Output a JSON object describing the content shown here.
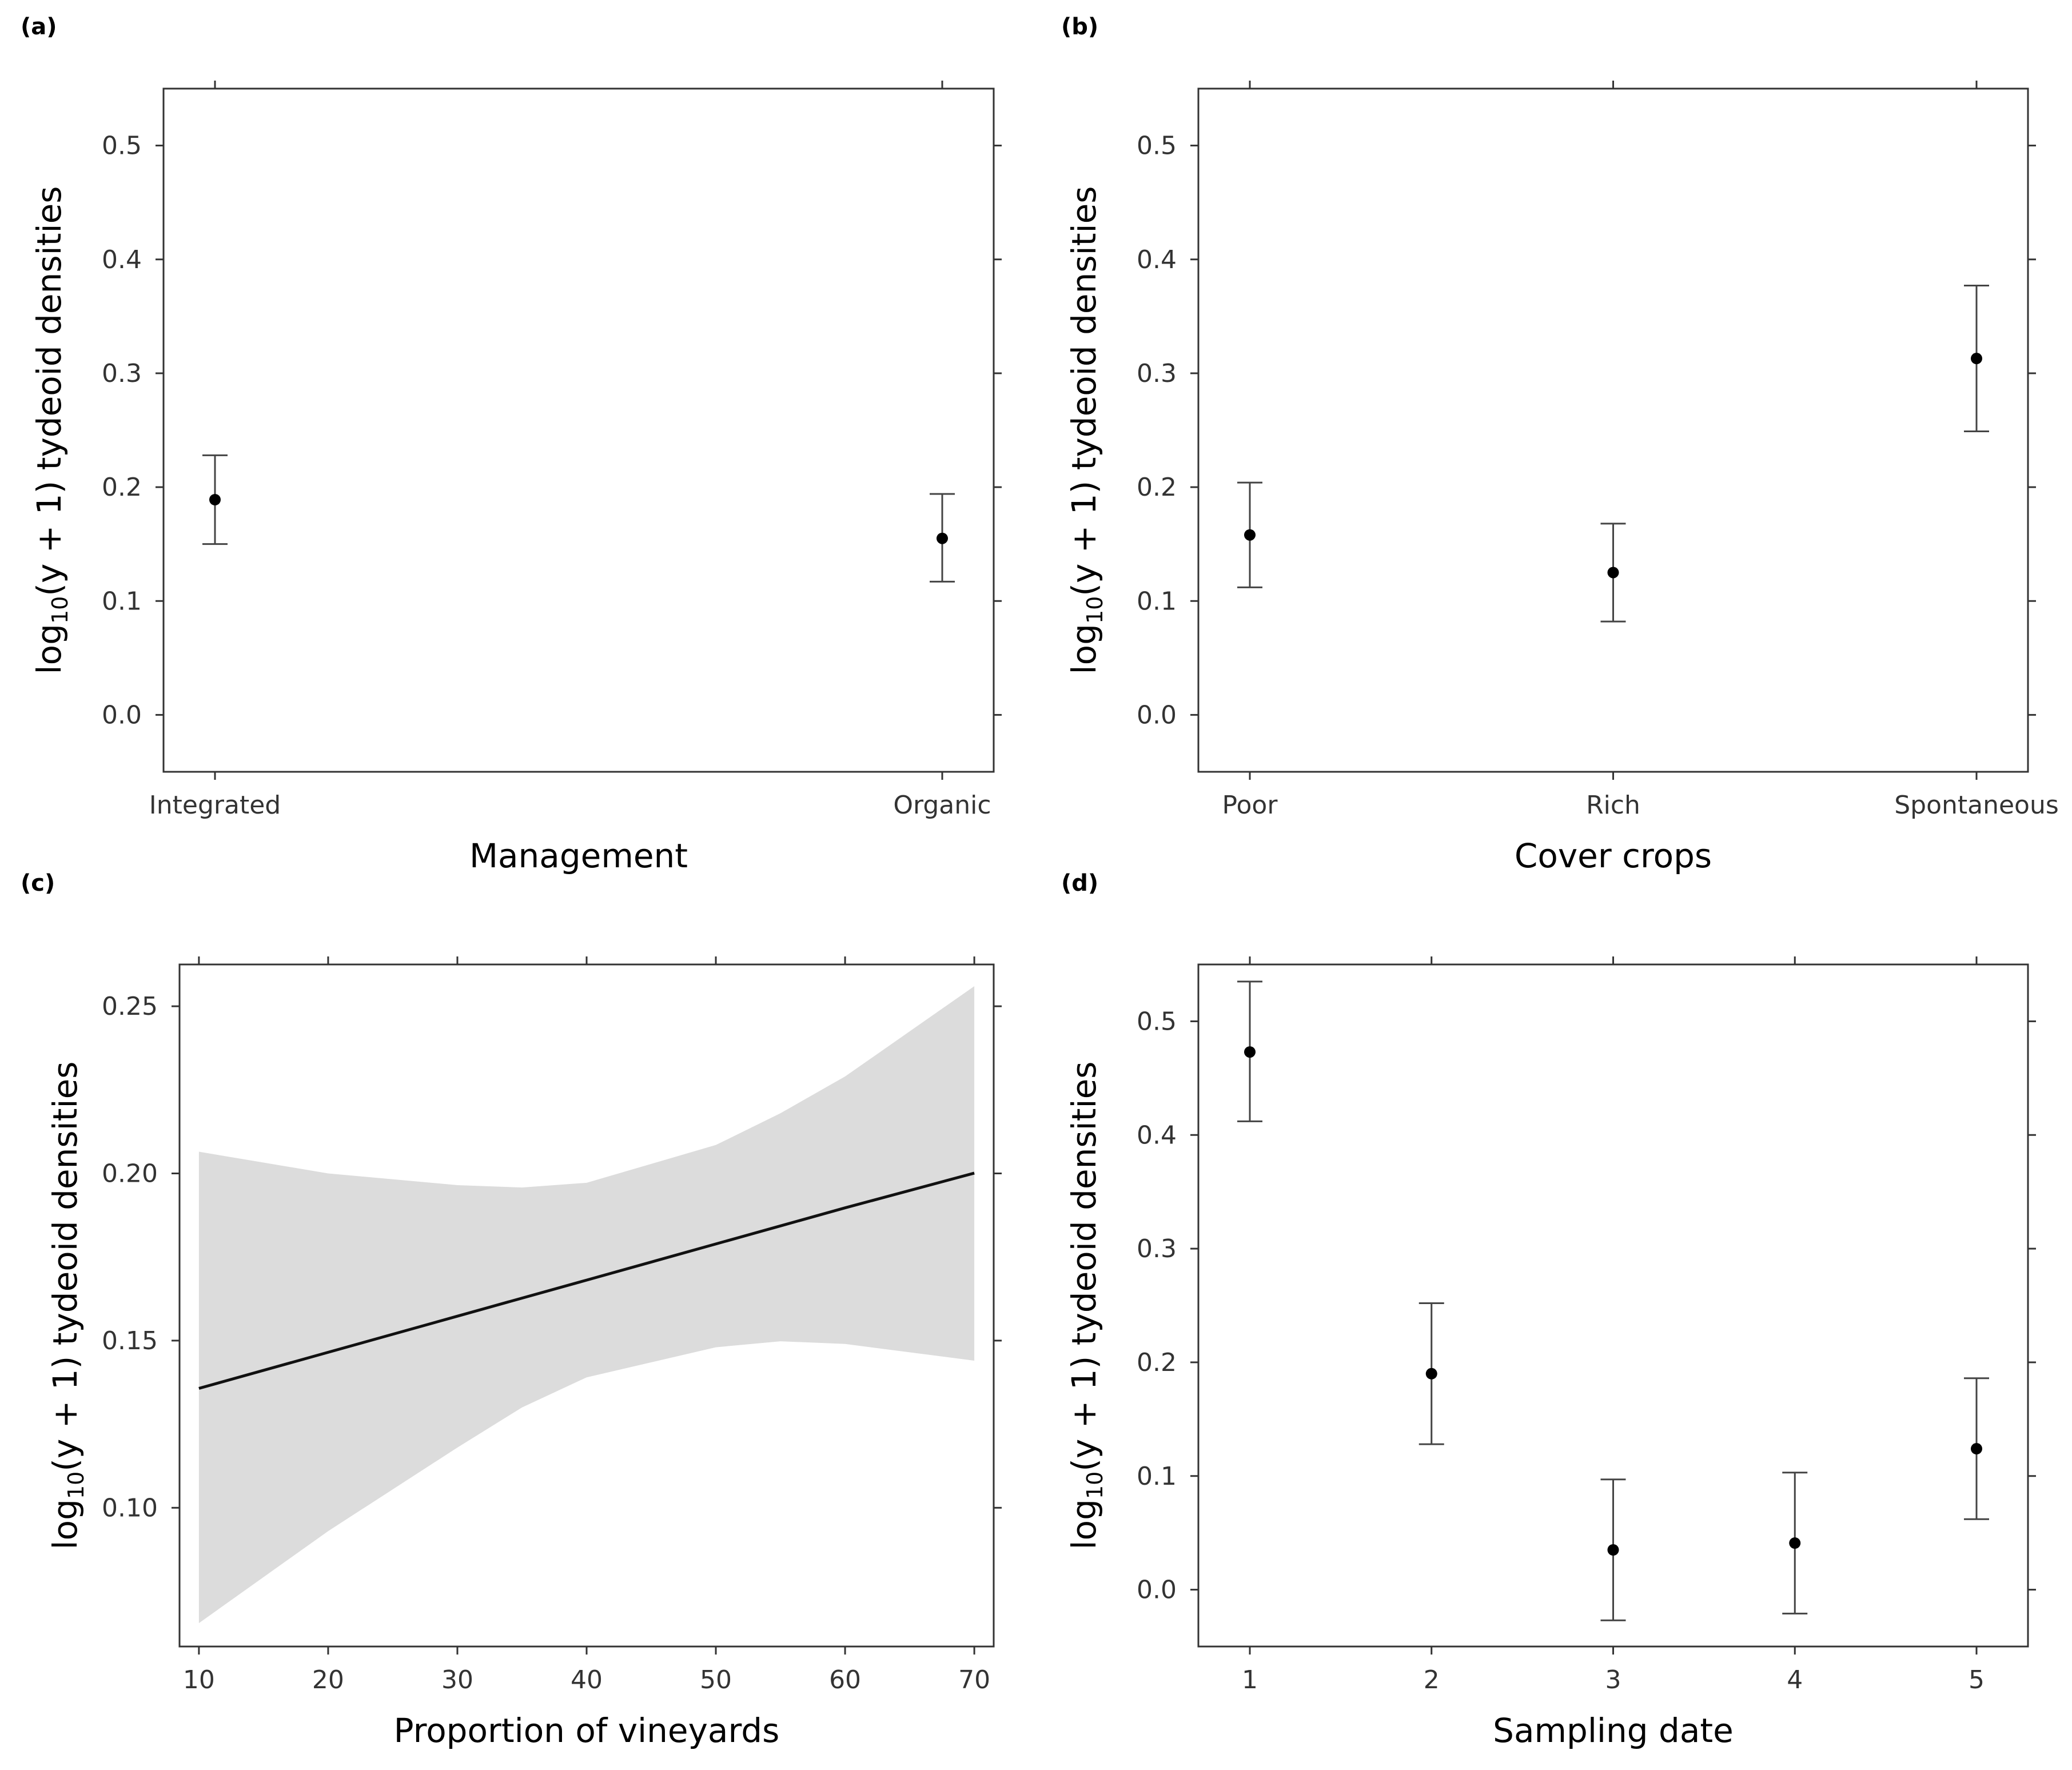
{
  "chart_data": [
    {
      "id": "a",
      "panel_label": "(a)",
      "type": "scatter",
      "categories": [
        "Integrated",
        "Organic"
      ],
      "estimates": [
        0.189,
        0.155
      ],
      "lower": [
        0.15,
        0.117
      ],
      "upper": [
        0.228,
        0.194
      ],
      "xlabel": "Management",
      "ylabel_prefix": "log",
      "ylabel_sub": "10",
      "ylabel_main": "(y + 1) tydeoid densities",
      "ylim": [
        -0.05,
        0.55
      ],
      "yticks": [
        0.0,
        0.1,
        0.2,
        0.3,
        0.4,
        0.5
      ],
      "ytick_labels": [
        "0.0",
        "0.1",
        "0.2",
        "0.3",
        "0.4",
        "0.5"
      ]
    },
    {
      "id": "b",
      "panel_label": "(b)",
      "type": "scatter",
      "categories": [
        "Poor",
        "Rich",
        "Spontaneous"
      ],
      "estimates": [
        0.158,
        0.125,
        0.313
      ],
      "lower": [
        0.112,
        0.082,
        0.249
      ],
      "upper": [
        0.204,
        0.168,
        0.377
      ],
      "xlabel": "Cover crops",
      "ylabel_prefix": "log",
      "ylabel_sub": "10",
      "ylabel_main": "(y + 1) tydeoid densities",
      "ylim": [
        -0.05,
        0.55
      ],
      "yticks": [
        0.0,
        0.1,
        0.2,
        0.3,
        0.4,
        0.5
      ],
      "ytick_labels": [
        "0.0",
        "0.1",
        "0.2",
        "0.3",
        "0.4",
        "0.5"
      ]
    },
    {
      "id": "c",
      "panel_label": "(c)",
      "type": "line",
      "x": [
        10,
        20,
        30,
        35,
        40,
        50,
        55,
        60,
        70
      ],
      "fit": [
        0.1357,
        0.1465,
        0.1573,
        0.1627,
        0.1681,
        0.1789,
        0.1843,
        0.1897,
        0.2001
      ],
      "lower": [
        0.0655,
        0.093,
        0.118,
        0.13,
        0.139,
        0.148,
        0.1498,
        0.149,
        0.144
      ],
      "upper": [
        0.2065,
        0.2,
        0.1965,
        0.1958,
        0.1972,
        0.2085,
        0.218,
        0.229,
        0.256
      ],
      "xlabel": "Proportion of vineyards",
      "ylabel_prefix": "log",
      "ylabel_sub": "10",
      "ylabel_main": "(y + 1) tydeoid densities",
      "xlim": [
        8.5,
        71.5
      ],
      "ylim": [
        0.0585,
        0.2625
      ],
      "xticks": [
        10,
        20,
        30,
        40,
        50,
        60,
        70
      ],
      "xtick_labels": [
        "10",
        "20",
        "30",
        "40",
        "50",
        "60",
        "70"
      ],
      "yticks": [
        0.1,
        0.15,
        0.2,
        0.25
      ],
      "ytick_labels": [
        "0.10",
        "0.15",
        "0.20",
        "0.25"
      ]
    },
    {
      "id": "d",
      "panel_label": "(d)",
      "type": "scatter",
      "categories": [
        "1",
        "2",
        "3",
        "4",
        "5"
      ],
      "estimates": [
        0.473,
        0.19,
        0.035,
        0.041,
        0.124
      ],
      "lower": [
        0.412,
        0.128,
        -0.027,
        -0.021,
        0.062
      ],
      "upper": [
        0.535,
        0.252,
        0.097,
        0.103,
        0.186
      ],
      "xlabel": "Sampling date",
      "ylabel_prefix": "log",
      "ylabel_sub": "10",
      "ylabel_main": "(y + 1) tydeoid densities",
      "ylim": [
        -0.05,
        0.55
      ],
      "yticks": [
        0.0,
        0.1,
        0.2,
        0.3,
        0.4,
        0.5
      ],
      "ytick_labels": [
        "0.0",
        "0.1",
        "0.2",
        "0.3",
        "0.4",
        "0.5"
      ]
    }
  ]
}
